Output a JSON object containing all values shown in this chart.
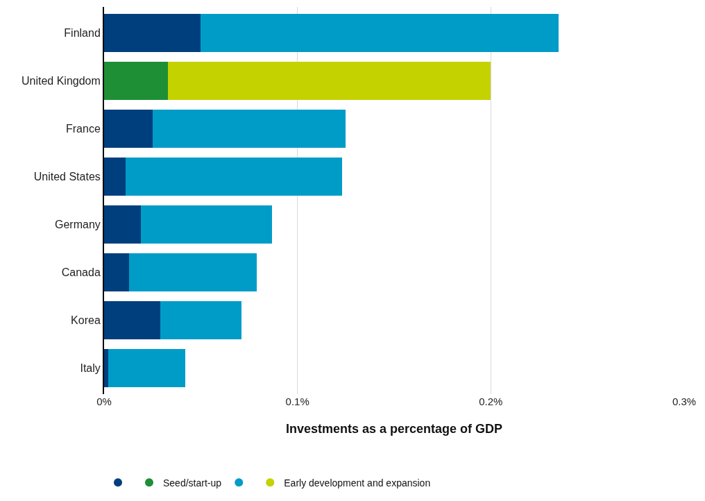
{
  "chart_data": {
    "type": "bar",
    "orientation": "horizontal",
    "stacked": true,
    "categories": [
      "Finland",
      "United Kingdom",
      "France",
      "United States",
      "Germany",
      "Canada",
      "Korea",
      "Italy"
    ],
    "series": [
      {
        "name": "Seed/start-up",
        "color": "#003f7d",
        "colors": [
          "#003f7d",
          "#1e8f35",
          "#003f7d",
          "#003f7d",
          "#003f7d",
          "#003f7d",
          "#003f7d",
          "#003f7d"
        ],
        "values": [
          0.05,
          0.033,
          0.025,
          0.011,
          0.019,
          0.013,
          0.029,
          0.002
        ]
      },
      {
        "name": "Early development and expansion",
        "color": "#009cc8",
        "colors": [
          "#009cc8",
          "#c4d200",
          "#009cc8",
          "#009cc8",
          "#009cc8",
          "#009cc8",
          "#009cc8",
          "#009cc8"
        ],
        "values": [
          0.185,
          0.167,
          0.1,
          0.112,
          0.068,
          0.066,
          0.042,
          0.04
        ]
      }
    ],
    "xlabel": "Investments as a percentage of GDP",
    "xlim": [
      0,
      0.3
    ],
    "xticks": [
      {
        "value": 0,
        "label": "0%"
      },
      {
        "value": 0.1,
        "label": "0.1%"
      },
      {
        "value": 0.2,
        "label": "0.2%"
      },
      {
        "value": 0.3,
        "label": "0.3%"
      }
    ],
    "grid": "x",
    "legend": "bottom"
  }
}
